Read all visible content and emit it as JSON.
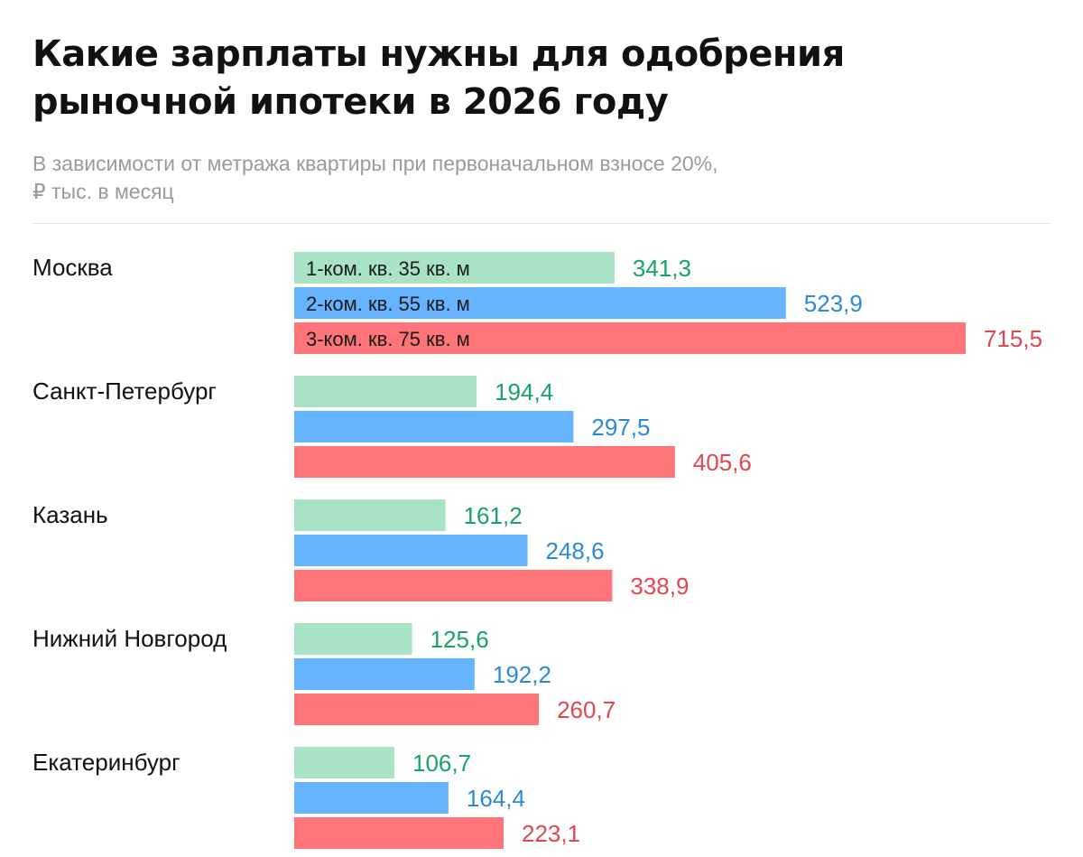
{
  "title": [
    "Какие зарплаты нужны для одобрения",
    "рыночной ипотеки в 2026 году"
  ],
  "subtitle": [
    "В зависимости от метража квартиры при первоначальном взносе 20%,",
    "₽ тыс. в месяц"
  ],
  "colors": {
    "series_fill": [
      "#a8e3c6",
      "#66b3ff",
      "#ff7479"
    ],
    "series_text": [
      "#16a464",
      "#2a8ad8",
      "#e2464f"
    ],
    "category_text": "#111111",
    "inbar_text": "#1a1a1a"
  },
  "chart_data": {
    "type": "bar",
    "orientation": "horizontal",
    "title": "Какие зарплаты нужны для одобрения рыночной ипотеки в 2026 году",
    "unit": "₽ тыс. в месяц",
    "categories": [
      "Москва",
      "Санкт-Петербург",
      "Казань",
      "Нижний Новгород",
      "Екатеринбург"
    ],
    "series": [
      {
        "name": "1-ком. кв. 35 кв. м",
        "values": [
          341.3,
          194.4,
          161.2,
          125.6,
          106.7
        ],
        "labels": [
          "341,3",
          "194,4",
          "161,2",
          "125,6",
          "106,7"
        ]
      },
      {
        "name": "2-ком. кв. 55 кв. м",
        "values": [
          523.9,
          297.5,
          248.6,
          192.2,
          164.4
        ],
        "labels": [
          "523,9",
          "297,5",
          "248,6",
          "192,2",
          "164,4"
        ]
      },
      {
        "name": "3-ком. кв. 75 кв. м",
        "values": [
          715.5,
          405.6,
          338.9,
          260.7,
          223.1
        ],
        "labels": [
          "715,5",
          "405,6",
          "338,9",
          "260,7",
          "223,1"
        ]
      }
    ],
    "legend": "inside first category bars",
    "xlim": [
      0,
      715.5
    ],
    "grid": false
  }
}
